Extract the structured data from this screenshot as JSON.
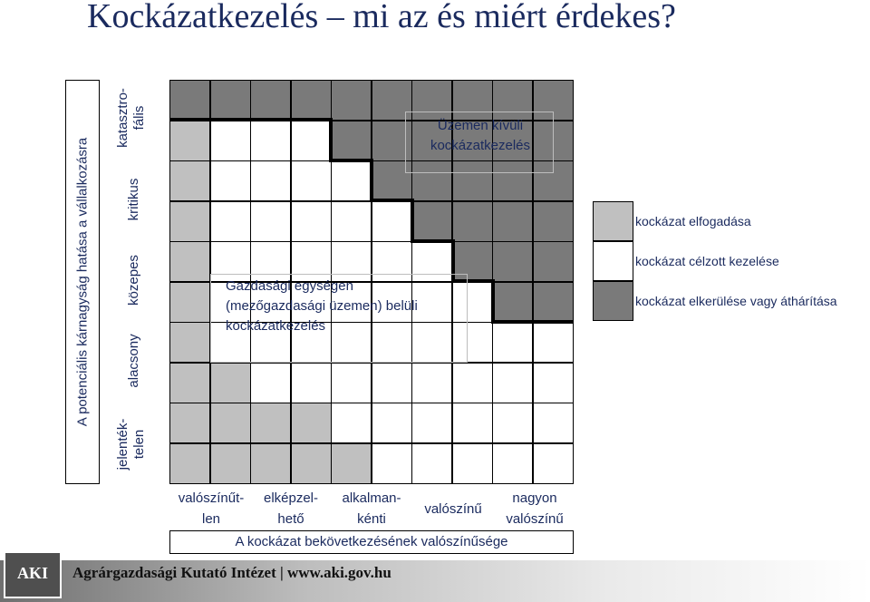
{
  "title": "Kockázatkezelés – mi az és miért érdekes?",
  "y_axis": {
    "label": "A potenciális kárnagyság hatása a vállalkozásra",
    "categories": [
      {
        "line1": "jelenték-",
        "line2": "telen"
      },
      {
        "line1": "alacsony",
        "line2": ""
      },
      {
        "line1": "közepes",
        "line2": ""
      },
      {
        "line1": "kritikus",
        "line2": ""
      },
      {
        "line1": "katasztro-",
        "line2": "fális"
      }
    ]
  },
  "x_axis": {
    "label": "A kockázat bekövetkezésének valószínűsége",
    "categories": [
      {
        "line1": "valószínűt-",
        "line2": "len"
      },
      {
        "line1": "elképzel-",
        "line2": "hető"
      },
      {
        "line1": "alkalman-",
        "line2": "kénti"
      },
      {
        "line1": "valószínű",
        "line2": ""
      },
      {
        "line1": "nagyon",
        "line2": "valószínű"
      }
    ]
  },
  "annotations": {
    "outside": {
      "line1": "Üzemen kívüli",
      "line2": "kockázatkezelés"
    },
    "inside": {
      "line1": "Gazdasági egységen",
      "line2": "(mezőgazdasági üzemen) belüli",
      "line3": "kockázatkezelés"
    }
  },
  "legend": [
    {
      "label": "kockázat elfogadása",
      "color": "#c0c0c0"
    },
    {
      "label": "kockázat célzott kezelése",
      "color": "#ffffff"
    },
    {
      "label": "kockázat elkerülése vagy áthárítása",
      "color": "#7a7a7a"
    }
  ],
  "colors": {
    "accept": "#c0c0c0",
    "manage": "#ffffff",
    "avoid": "#7a7a7a"
  },
  "matrix_rows": [
    "DDDDDDDDDD",
    "LWWWDDDDDD",
    "LWWWWDDDDD",
    "LWWWWWDDDD",
    "LWWWWWWDDD",
    "LWWWWWWWDD",
    "LWWWWWWWWW",
    "LLWWWWWWWW",
    "LLLLWWWWWW",
    "LLLLLWWWWW"
  ],
  "footer": {
    "logo": "AKI",
    "text": "Agrárgazdasági Kutató Intézet | www.aki.gov.hu"
  }
}
